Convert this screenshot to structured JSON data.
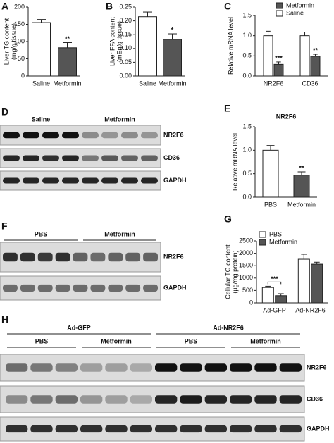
{
  "chart_data": [
    {
      "label": "A",
      "type": "bar",
      "ylabel": [
        "Liver TG content",
        "(mg/g tissue)"
      ],
      "categories": [
        "Saline",
        "Metformin"
      ],
      "values": [
        155,
        82
      ],
      "errors": [
        9,
        15
      ],
      "colors": [
        "#ffffff",
        "#555555"
      ],
      "significance": [
        null,
        "**"
      ],
      "ylim": [
        0,
        200
      ],
      "yticks": [
        0,
        50,
        100,
        150,
        200
      ]
    },
    {
      "label": "B",
      "type": "bar",
      "ylabel": [
        "Liver FFA content",
        "(mEq/g tissue)"
      ],
      "categories": [
        "Saline",
        "Metformin"
      ],
      "values": [
        0.215,
        0.133
      ],
      "errors": [
        0.017,
        0.02
      ],
      "colors": [
        "#ffffff",
        "#555555"
      ],
      "significance": [
        null,
        "*"
      ],
      "ylim": [
        0,
        0.25
      ],
      "yticks": [
        {
          "value": 0,
          "label": "0.00"
        },
        0.05,
        {
          "value": 0.1,
          "label": "0.10"
        },
        0.15,
        {
          "value": 0.2,
          "label": "0.20"
        },
        0.25
      ]
    },
    {
      "label": "C",
      "type": "bar",
      "ylabel": [
        "Relative mRNA level"
      ],
      "categories": [
        "NR2F6",
        "CD36"
      ],
      "series": [
        {
          "name": "Saline",
          "color": "#ffffff",
          "values": [
            1.0,
            1.0
          ],
          "errors": [
            0.11,
            0.09
          ]
        },
        {
          "name": "Metformin",
          "color": "#555555",
          "values": [
            0.29,
            0.49
          ],
          "errors": [
            0.06,
            0.05
          ],
          "significance": [
            "***",
            "**"
          ]
        }
      ],
      "ylim": [
        0,
        1.5
      ],
      "yticks": [
        {
          "value": 0,
          "label": "0.0"
        },
        0.5,
        {
          "value": 1,
          "label": "1.0"
        },
        1.5
      ]
    },
    {
      "label": "E",
      "type": "bar",
      "title": "NR2F6",
      "ylabel": [
        "Relative mRNA level"
      ],
      "categories": [
        "PBS",
        "Metformin"
      ],
      "values": [
        1.0,
        0.47
      ],
      "errors": [
        0.1,
        0.07
      ],
      "colors": [
        "#ffffff",
        "#555555"
      ],
      "significance": [
        null,
        "**"
      ],
      "ylim": [
        0,
        1.5
      ],
      "yticks": [
        {
          "value": 0,
          "label": "0.0"
        },
        0.5,
        {
          "value": 1,
          "label": "1.0"
        },
        1.5
      ]
    },
    {
      "label": "G",
      "type": "bar",
      "ylabel": [
        "Cellular TG content",
        "(µg/mg protein)"
      ],
      "categories": [
        "Ad-GFP",
        "Ad-NR2F6"
      ],
      "series": [
        {
          "name": "PBS",
          "color": "#ffffff",
          "values": [
            620,
            1760
          ],
          "errors": [
            50,
            200
          ]
        },
        {
          "name": "Metformin",
          "color": "#555555",
          "values": [
            290,
            1560
          ],
          "errors": [
            80,
            80
          ],
          "significance": [
            "***",
            null
          ]
        }
      ],
      "ylim": [
        0,
        2500
      ],
      "yticks": [
        0,
        500,
        1000,
        1500,
        2000,
        2500
      ]
    }
  ],
  "blots": [
    {
      "label": "D",
      "groups": [
        "Saline",
        "Metformin"
      ],
      "rows": [
        "NR2F6",
        "CD36",
        "GAPDH"
      ]
    },
    {
      "label": "F",
      "groups": [
        "PBS",
        "Metformin"
      ],
      "rows": [
        "NR2F6",
        "GAPDH"
      ]
    },
    {
      "label": "H",
      "groups": [
        "Ad-GFP",
        "Ad-NR2F6"
      ],
      "subgroups": [
        "PBS",
        "Metformin",
        "PBS",
        "Metformin"
      ],
      "rows": [
        "NR2F6",
        "CD36",
        "GAPDH"
      ]
    }
  ]
}
